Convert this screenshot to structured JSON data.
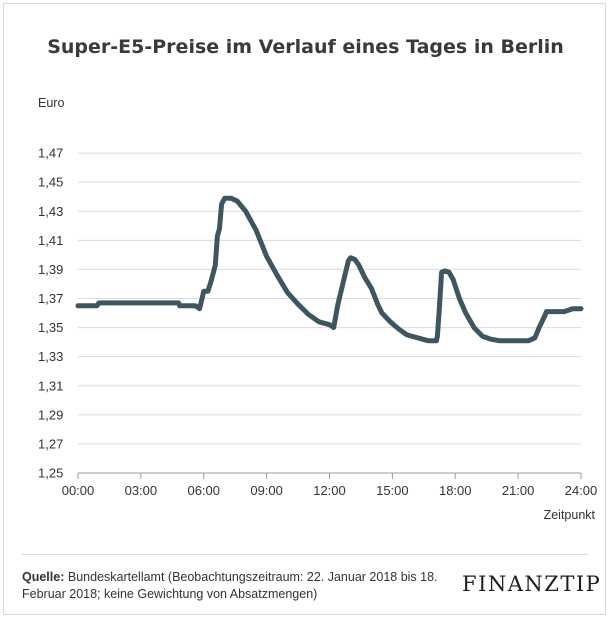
{
  "chart_data": {
    "type": "line",
    "title": "Super-E5-Preise im Verlauf eines Tages in Berlin",
    "ylabel": "Euro",
    "xlabel": "Zeitpunkt",
    "ylim": [
      1.25,
      1.49
    ],
    "xlim": [
      0,
      24
    ],
    "yticks": [
      "1,25",
      "1,27",
      "1,29",
      "1,31",
      "1,33",
      "1,35",
      "1,37",
      "1,39",
      "1,41",
      "1,43",
      "1,45",
      "1,47"
    ],
    "ytick_values": [
      1.25,
      1.27,
      1.29,
      1.31,
      1.33,
      1.35,
      1.37,
      1.39,
      1.41,
      1.43,
      1.45,
      1.47
    ],
    "xticks": [
      "00:00",
      "03:00",
      "06:00",
      "09:00",
      "12:00",
      "15:00",
      "18:00",
      "21:00",
      "24:00"
    ],
    "xtick_values": [
      0,
      3,
      6,
      9,
      12,
      15,
      18,
      21,
      24
    ],
    "grid": true,
    "color": "#3f5661",
    "series": [
      {
        "x": [
          0,
          0.9,
          1.0,
          3.3,
          4.8,
          4.85,
          5.0,
          5.1,
          5.4,
          5.6,
          5.8,
          6.0,
          6.2,
          6.35,
          6.55,
          6.65,
          6.75,
          6.85,
          7.0,
          7.3,
          7.6,
          8.0,
          8.5,
          9.0,
          9.5,
          10.0,
          10.5,
          11.0,
          11.5,
          12.0,
          12.2,
          12.4,
          12.6,
          12.8,
          12.9,
          13.0,
          13.2,
          13.4,
          13.7,
          14.0,
          14.3,
          14.5,
          14.9,
          15.3,
          15.7,
          16.2,
          16.7,
          17.1,
          17.15,
          17.25,
          17.35,
          17.5,
          17.7,
          17.9,
          18.2,
          18.5,
          18.9,
          19.3,
          19.7,
          20.1,
          20.5,
          21.0,
          21.5,
          21.8,
          22.0,
          22.3,
          22.35,
          22.5,
          22.8,
          23.2,
          23.6,
          24.0
        ],
        "y": [
          1.365,
          1.365,
          1.367,
          1.367,
          1.367,
          1.365,
          1.365,
          1.365,
          1.365,
          1.365,
          1.363,
          1.375,
          1.375,
          1.382,
          1.393,
          1.413,
          1.418,
          1.435,
          1.439,
          1.439,
          1.437,
          1.43,
          1.417,
          1.399,
          1.386,
          1.374,
          1.366,
          1.359,
          1.354,
          1.352,
          1.35,
          1.366,
          1.378,
          1.39,
          1.396,
          1.398,
          1.397,
          1.393,
          1.384,
          1.377,
          1.366,
          1.36,
          1.354,
          1.349,
          1.345,
          1.343,
          1.341,
          1.341,
          1.344,
          1.365,
          1.388,
          1.389,
          1.388,
          1.383,
          1.37,
          1.36,
          1.35,
          1.344,
          1.342,
          1.341,
          1.341,
          1.341,
          1.341,
          1.343,
          1.35,
          1.359,
          1.361,
          1.361,
          1.361,
          1.361,
          1.363,
          1.363
        ]
      }
    ]
  },
  "footer": {
    "source_label": "Quelle:",
    "source_text": "Bundeskartellamt (Beobachtungszeitraum: 22. Januar 2018 bis 18. Februar 2018; keine Gewichtung von Absatzmengen)",
    "logo": "FINANZTIP"
  }
}
